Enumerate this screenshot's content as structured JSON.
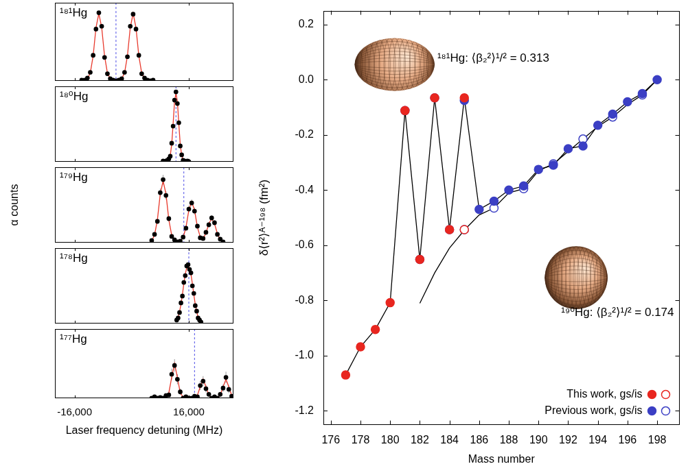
{
  "chart_data": [
    {
      "type": "scatter",
      "title": "¹⁸¹Hg",
      "xlim": [
        -21500,
        28500
      ],
      "xticks": [
        {
          "value": -16000,
          "label": "-16,000"
        },
        {
          "value": 16000,
          "label": "16,000"
        }
      ],
      "ylim": [
        0,
        110
      ],
      "tick_labels": false,
      "centroid": -4400,
      "series": [
        {
          "color": "#000000",
          "marker": "circle",
          "line_style": "none",
          "x": [
            -14000,
            -13200,
            -12400,
            -11600,
            -10800,
            -10000,
            -9200,
            -8400,
            -7600,
            -6800,
            -6000,
            -5200,
            -4400,
            -3600,
            -2800,
            -2000,
            -1200,
            -400,
            400,
            1200,
            2000,
            2800,
            3600,
            4400,
            5200,
            6000
          ],
          "values": [
            1,
            1,
            4,
            12,
            36,
            73,
            96,
            77,
            33,
            10,
            3,
            1,
            0,
            1,
            3,
            12,
            34,
            77,
            94,
            73,
            36,
            10,
            4,
            1,
            0,
            1
          ]
        },
        {
          "color": "#e8392c",
          "marker": "none",
          "line_style": "solid",
          "x": [
            -14000,
            -13200,
            -12400,
            -11600,
            -10800,
            -10000,
            -9200,
            -8400,
            -7600,
            -6800,
            -6000,
            -5200,
            -4400,
            -3600,
            -2800,
            -2000,
            -1200,
            -400,
            400,
            1200,
            2000,
            2800,
            3600,
            4400,
            5200,
            6000
          ],
          "values": [
            0.5,
            1,
            3,
            11,
            35,
            75,
            95,
            75,
            35,
            11,
            3,
            1,
            0.5,
            1,
            3,
            11,
            35,
            75,
            95,
            75,
            35,
            11,
            3,
            1,
            0.5,
            0.5
          ]
        }
      ]
    },
    {
      "type": "scatter",
      "title": "¹⁸⁰Hg",
      "xlim": [
        -21500,
        28500
      ],
      "xticks": [
        {
          "value": -16000,
          "label": "-16,000"
        },
        {
          "value": 16000,
          "label": "16,000"
        }
      ],
      "ylim": [
        0,
        110
      ],
      "tick_labels": false,
      "centroid": 12400,
      "series": [
        {
          "color": "#000000",
          "marker": "circle",
          "line_style": "none",
          "x": [
            8800,
            9200,
            9600,
            10000,
            10400,
            10800,
            11200,
            11600,
            12000,
            12400,
            12800,
            13200,
            13600,
            14000,
            14400,
            14800,
            15200,
            15600,
            16000
          ],
          "values": [
            1,
            0,
            1,
            2,
            4,
            8,
            27,
            52,
            90,
            102,
            85,
            57,
            23,
            10,
            2,
            1,
            0,
            1,
            0
          ]
        },
        {
          "color": "#e8392c",
          "marker": "none",
          "line_style": "solid",
          "x": [
            8800,
            9200,
            9600,
            10000,
            10400,
            10800,
            11200,
            11600,
            12000,
            12400,
            12800,
            13200,
            13600,
            14000,
            14400,
            14800,
            15200,
            15600,
            16000
          ],
          "values": [
            0.5,
            0.5,
            0.5,
            1,
            3,
            9,
            25,
            55,
            88,
            100,
            88,
            55,
            25,
            9,
            3,
            1,
            0.5,
            0.5,
            0.5
          ]
        }
      ]
    },
    {
      "type": "scatter",
      "title": "¹⁷⁹Hg",
      "y_label": "α counts",
      "xlim": [
        -21500,
        28500
      ],
      "xticks": [
        {
          "value": -16000,
          "label": "-16,000"
        },
        {
          "value": 16000,
          "label": "16,000"
        }
      ],
      "ylim": [
        0,
        110
      ],
      "tick_labels": false,
      "centroid": 14600,
      "series": [
        {
          "color": "#000000",
          "marker": "circle",
          "line_style": "none",
          "x": [
            5600,
            6400,
            7200,
            8000,
            8800,
            9600,
            10400,
            11200,
            12000,
            12800,
            13600,
            14400,
            15200,
            16000,
            16800,
            17600,
            18400,
            19200,
            20000,
            20800,
            21600,
            22400,
            23200,
            24000,
            24800,
            25600
          ],
          "values": [
            3,
            12,
            31,
            73,
            92,
            69,
            35,
            9,
            4,
            1,
            2,
            8,
            21,
            49,
            58,
            46,
            24,
            7,
            6,
            15,
            26,
            36,
            29,
            12,
            5,
            1
          ],
          "errors": [
            2,
            3,
            4,
            6,
            7,
            6,
            4,
            2,
            2,
            1,
            1,
            2,
            3,
            5,
            5,
            5,
            3,
            2,
            2,
            3,
            4,
            4,
            4,
            3,
            2,
            1
          ]
        },
        {
          "color": "#e8392c",
          "marker": "none",
          "line_style": "solid",
          "x": [
            5600,
            6400,
            7200,
            8000,
            8800,
            9600,
            10400,
            11200,
            12000,
            12800,
            13600,
            14400,
            15200,
            16000,
            16800,
            17600,
            18400,
            19200,
            20000,
            20800,
            21600,
            22400,
            23200,
            24000,
            24800,
            25600
          ],
          "values": [
            2.7,
            10.8,
            33.3,
            71.1,
            90,
            71.1,
            33.3,
            10.8,
            3,
            1.5,
            2,
            7.2,
            22.2,
            47.4,
            60,
            47.5,
            22.6,
            8.3,
            6,
            13.6,
            27.7,
            35,
            27.7,
            13,
            4.2,
            1
          ]
        }
      ]
    },
    {
      "type": "scatter",
      "title": "¹⁷⁸Hg",
      "xlim": [
        -21500,
        28500
      ],
      "xticks": [
        {
          "value": -16000,
          "label": "-16,000"
        },
        {
          "value": 16000,
          "label": "16,000"
        }
      ],
      "ylim": [
        0,
        110
      ],
      "tick_labels": false,
      "centroid": 16000,
      "series": [
        {
          "color": "#000000",
          "marker": "circle",
          "line_style": "none",
          "x": [
            12600,
            13000,
            13400,
            13800,
            14200,
            14600,
            15000,
            15400,
            15800,
            16200,
            16600,
            17000,
            17400,
            17800,
            18200,
            18600,
            19000,
            19400
          ],
          "values": [
            5,
            8,
            16,
            30,
            40,
            60,
            70,
            84,
            86,
            79,
            74,
            55,
            44,
            26,
            18,
            8,
            5,
            2
          ]
        },
        {
          "color": "#e8392c",
          "marker": "none",
          "line_style": "solid",
          "x": [
            12600,
            13000,
            13400,
            13800,
            14200,
            14600,
            15000,
            15400,
            15800,
            16200,
            16600,
            17000,
            17400,
            17800,
            18200,
            18600,
            19000,
            19400
          ],
          "values": [
            4,
            9,
            17,
            28,
            42,
            58,
            72,
            81,
            85,
            81,
            72,
            58,
            42,
            28,
            17,
            9,
            4,
            2
          ]
        }
      ]
    },
    {
      "type": "scatter",
      "title": "¹⁷⁷Hg",
      "x_label": "Laser frequency detuning (MHz)",
      "xlim": [
        -21500,
        28500
      ],
      "xticks": [
        {
          "value": -16000,
          "label": "-16,000"
        },
        {
          "value": 16000,
          "label": "16,000"
        }
      ],
      "ylim": [
        0,
        110
      ],
      "tick_labels": "x",
      "centroid": 17600,
      "series": [
        {
          "color": "#000000",
          "marker": "circle",
          "line_style": "none",
          "x": [
            5600,
            6400,
            7200,
            8000,
            8800,
            9600,
            10400,
            11200,
            12000,
            12800,
            13600,
            14400,
            15200,
            16000,
            16800,
            17600,
            18400,
            19200,
            20000,
            20800,
            21600,
            22400,
            23200,
            24000,
            24800,
            25600,
            26400,
            27200,
            28000
          ],
          "values": [
            0,
            2,
            0,
            1,
            0,
            4,
            5,
            38,
            52,
            30,
            10,
            0,
            2,
            0,
            0,
            3,
            2,
            20,
            27,
            15,
            6,
            0,
            2,
            0,
            6,
            16,
            33,
            14,
            3
          ],
          "errors": [
            2,
            3,
            2,
            3,
            2,
            4,
            5,
            9,
            10,
            8,
            5,
            2,
            3,
            2,
            2,
            4,
            3,
            7,
            8,
            6,
            4,
            2,
            3,
            2,
            4,
            6,
            9,
            6,
            3
          ]
        },
        {
          "color": "#e8392c",
          "marker": "none",
          "line_style": "solid",
          "x": [
            5600,
            6400,
            7200,
            8000,
            8800,
            9600,
            10400,
            11200,
            12000,
            12800,
            13600,
            14400,
            15200,
            16000,
            16800,
            17600,
            18400,
            19200,
            20000,
            20800,
            21600,
            22400,
            23200,
            24000,
            24800,
            25600,
            26400,
            27200,
            28000
          ],
          "values": [
            0,
            0,
            0,
            0,
            0,
            1.7,
            8.3,
            33,
            55,
            33,
            8.3,
            1.7,
            0,
            0,
            0,
            0.9,
            4.5,
            18,
            30,
            18,
            4.5,
            0.9,
            0,
            0.9,
            4.5,
            18,
            30,
            18,
            4.5
          ]
        }
      ]
    },
    {
      "type": "scatter",
      "x_label": "Mass number",
      "y_label": "δ⟨r²⟩ᴬ⁻¹⁹⁸ (fm²)",
      "xlim": [
        175.5,
        199.5
      ],
      "xticks": [
        176,
        178,
        180,
        182,
        184,
        186,
        188,
        190,
        192,
        194,
        196,
        198
      ],
      "ylim": [
        -1.25,
        0.25
      ],
      "yticks": [
        -1.2,
        {
          "value": -1,
          "label": "-1.0"
        },
        -0.8,
        -0.6,
        -0.4,
        -0.2,
        {
          "value": 0,
          "label": "0.0"
        },
        0.2
      ],
      "legend": "lower right",
      "annotations": [
        {
          "text": "¹⁸¹Hg: ⟨β₂²⟩¹/² = 0.313"
        },
        {
          "text": "¹⁹⁰Hg: ⟨β₂²⟩¹/² = 0.174"
        }
      ],
      "series": [
        {
          "name": "This work, gs/is",
          "color": "#e8261f",
          "marker": "circle",
          "line_style": "none",
          "x": [
            177,
            178,
            179,
            180,
            181,
            182,
            183,
            184,
            185
          ],
          "values": [
            -1.07,
            -0.968,
            -0.905,
            -0.808,
            -0.112,
            -0.651,
            -0.066,
            -0.543,
            -0.066
          ],
          "errors": [
            0.012,
            0.012,
            0.012,
            0.012,
            0.012,
            0.012,
            0.012,
            0.012,
            0.012
          ]
        },
        {
          "name": "This work, gs/is",
          "color": "#e8261f",
          "marker": "open_circle",
          "line_style": "none",
          "x": [
            185
          ],
          "values": [
            -0.543
          ]
        },
        {
          "name": "Previous work, gs/is",
          "color": "#3b3fc4",
          "marker": "circle",
          "line_style": "none",
          "x": [
            181,
            182,
            183,
            184,
            185,
            186,
            187,
            188,
            189,
            190,
            191,
            192,
            193,
            194,
            195,
            196,
            197,
            198
          ],
          "values": [
            -0.112,
            -0.651,
            -0.066,
            -0.543,
            -0.075,
            -0.47,
            -0.44,
            -0.4,
            -0.385,
            -0.325,
            -0.31,
            -0.25,
            -0.24,
            -0.165,
            -0.125,
            -0.08,
            -0.05,
            0
          ]
        },
        {
          "name": "Previous work, gs/is",
          "color": "#3b3fc4",
          "marker": "open_circle",
          "line_style": "none",
          "x": [
            185,
            187,
            189,
            191,
            193,
            195,
            197
          ],
          "values": [
            -0.543,
            -0.465,
            -0.395,
            -0.305,
            -0.215,
            -0.135,
            -0.055
          ]
        },
        {
          "color": "#000000",
          "marker": "none",
          "line_style": "solid",
          "x": [
            177,
            178,
            179,
            180,
            181,
            182,
            183,
            184,
            185,
            186,
            187,
            188,
            189,
            190,
            191,
            192,
            193,
            194,
            195,
            196,
            197,
            198
          ],
          "values": [
            -1.07,
            -0.968,
            -0.905,
            -0.808,
            -0.112,
            -0.651,
            -0.066,
            -0.543,
            -0.066,
            -0.47,
            -0.44,
            -0.4,
            -0.385,
            -0.325,
            -0.31,
            -0.25,
            -0.24,
            -0.165,
            -0.125,
            -0.08,
            -0.05,
            0
          ]
        },
        {
          "color": "#000000",
          "marker": "none",
          "line_style": "solid",
          "x": [
            182,
            183,
            184,
            185,
            186,
            187,
            188,
            189,
            190,
            191,
            192,
            193,
            194,
            195,
            196,
            197,
            198
          ],
          "values": [
            -0.81,
            -0.7,
            -0.61,
            -0.545,
            -0.49,
            -0.465,
            -0.41,
            -0.395,
            -0.33,
            -0.305,
            -0.26,
            -0.215,
            -0.17,
            -0.135,
            -0.09,
            -0.055,
            0
          ]
        }
      ]
    }
  ]
}
